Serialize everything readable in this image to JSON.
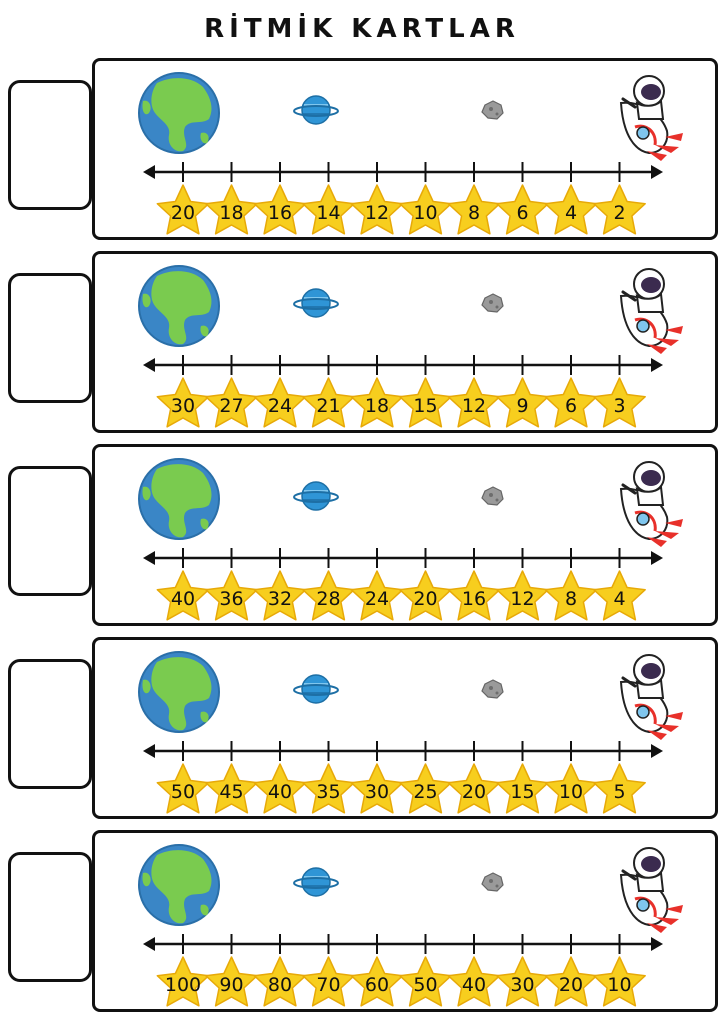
{
  "title": "RİTMİK KARTLAR",
  "colors": {
    "star_fill": "#F7CE1E",
    "star_stroke": "#E7A908",
    "earth_ocean": "#3A86C6",
    "earth_land": "#7ACB4F",
    "planet": "#2F95D6",
    "asteroid": "#9A9A9A",
    "rocket_red": "#E8302A",
    "line": "#111111"
  },
  "icons": [
    "earth-icon",
    "planet-icon",
    "asteroid-icon",
    "astronaut-rocket-icon",
    "star-icon"
  ],
  "cards": [
    {
      "numbers": [
        "20",
        "18",
        "16",
        "14",
        "12",
        "10",
        "8",
        "6",
        "4",
        "2"
      ]
    },
    {
      "numbers": [
        "30",
        "27",
        "24",
        "21",
        "18",
        "15",
        "12",
        "9",
        "6",
        "3"
      ]
    },
    {
      "numbers": [
        "40",
        "36",
        "32",
        "28",
        "24",
        "20",
        "16",
        "12",
        "8",
        "4"
      ]
    },
    {
      "numbers": [
        "50",
        "45",
        "40",
        "35",
        "30",
        "25",
        "20",
        "15",
        "10",
        "5"
      ]
    },
    {
      "numbers": [
        "100",
        "90",
        "80",
        "70",
        "60",
        "50",
        "40",
        "30",
        "20",
        "10"
      ]
    }
  ]
}
